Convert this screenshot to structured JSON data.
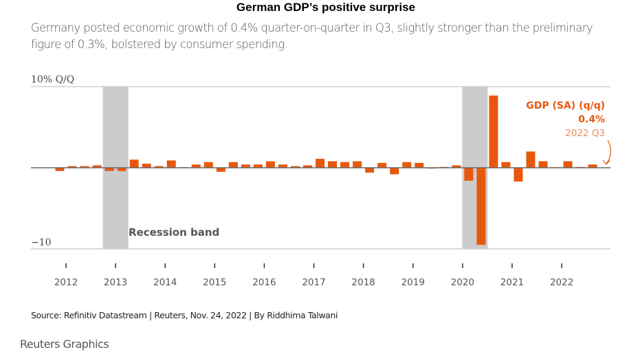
{
  "header": {
    "title": "German GDP’s positive surprise",
    "subtitle": "Germany posted economic growth of 0.4% quarter-on-quarter in Q3, slightly stronger than the preliminary figure of 0.3%, bolstered by consumer spending."
  },
  "footer": {
    "source": "Source: Refinitiv Datastream | Reuters, Nov. 24, 2022 | By Riddhima Talwani",
    "brand": "Reuters Graphics"
  },
  "colors": {
    "bar": "#e8580c",
    "band": "#cccccc",
    "annotation_light": "#f08c5a"
  },
  "chart_data": {
    "type": "bar",
    "title": "German GDP’s positive surprise",
    "xlabel": "",
    "ylabel": "10% Q/Q",
    "ylim": [
      -10,
      10
    ],
    "yticks": [
      {
        "value": 10,
        "label": "10% Q/Q"
      },
      {
        "value": -10,
        "label": "−10"
      }
    ],
    "xticks": [
      "2012",
      "2013",
      "2014",
      "2015",
      "2016",
      "2017",
      "2018",
      "2019",
      "2020",
      "2021",
      "2022"
    ],
    "grid": true,
    "recession_bands": [
      {
        "start": "2012 Q4",
        "end": "2013 Q1",
        "label": "Recession band"
      },
      {
        "start": "2020 Q1",
        "end": "2020 Q2",
        "label": ""
      }
    ],
    "series": [
      {
        "name": "GDP (SA) (q/q)",
        "categories": [
          "2011 Q4",
          "2012 Q1",
          "2012 Q2",
          "2012 Q3",
          "2012 Q4",
          "2013 Q1",
          "2013 Q2",
          "2013 Q3",
          "2013 Q4",
          "2014 Q1",
          "2014 Q2",
          "2014 Q3",
          "2014 Q4",
          "2015 Q1",
          "2015 Q2",
          "2015 Q3",
          "2015 Q4",
          "2016 Q1",
          "2016 Q2",
          "2016 Q3",
          "2016 Q4",
          "2017 Q1",
          "2017 Q2",
          "2017 Q3",
          "2017 Q4",
          "2018 Q1",
          "2018 Q2",
          "2018 Q3",
          "2018 Q4",
          "2019 Q1",
          "2019 Q2",
          "2019 Q3",
          "2019 Q4",
          "2020 Q1",
          "2020 Q2",
          "2020 Q3",
          "2020 Q4",
          "2021 Q1",
          "2021 Q2",
          "2021 Q3",
          "2021 Q4",
          "2022 Q1",
          "2022 Q2",
          "2022 Q3"
        ],
        "values": [
          -0.4,
          0.2,
          0.2,
          0.3,
          -0.4,
          -0.4,
          1.0,
          0.5,
          0.2,
          0.9,
          0.0,
          0.4,
          0.7,
          -0.5,
          0.7,
          0.4,
          0.4,
          0.8,
          0.4,
          0.2,
          0.3,
          1.1,
          0.8,
          0.7,
          0.8,
          -0.6,
          0.6,
          -0.8,
          0.7,
          0.6,
          -0.1,
          0.1,
          0.3,
          -1.6,
          -9.5,
          8.9,
          0.7,
          -1.7,
          2.0,
          0.8,
          0.0,
          0.8,
          0.1,
          0.4
        ]
      }
    ],
    "annotation": {
      "label": "GDP (SA) (q/q)",
      "value": "0.4%",
      "period": "2022 Q3"
    }
  }
}
